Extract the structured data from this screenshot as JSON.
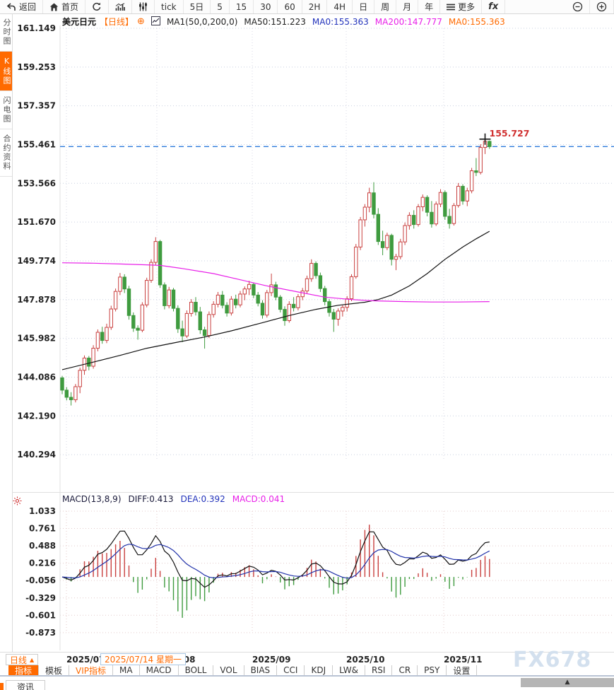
{
  "colors": {
    "accent_orange": "#ff6a00",
    "up_red": "#c9403f",
    "down_green": "#3f9b3f",
    "ma50_black": "#111111",
    "ma200_magenta": "#e820e8",
    "dea_blue": "#2233aa",
    "price_line_blue": "#2d7bdb",
    "annotation_red": "#d03030"
  },
  "top_toolbar": {
    "items": [
      {
        "icon": "back-arrow-icon",
        "label": "返回"
      },
      {
        "icon": "home-icon",
        "label": "首页"
      },
      {
        "icon": "refresh-icon"
      },
      {
        "icon": "bar-chart-icon"
      },
      {
        "icon": "candles-icon"
      },
      {
        "label": "tick"
      },
      {
        "label": "5日"
      },
      {
        "label": "5"
      },
      {
        "label": "15"
      },
      {
        "label": "30"
      },
      {
        "label": "60"
      },
      {
        "label": "2H"
      },
      {
        "label": "4H"
      },
      {
        "label": "日"
      },
      {
        "label": "周"
      },
      {
        "label": "月"
      },
      {
        "label": "年"
      },
      {
        "icon": "menu-icon",
        "label": "更多"
      },
      {
        "icon": "fx-icon",
        "label": "fx"
      },
      {
        "icon": "zoom-out-icon"
      },
      {
        "icon": "zoom-in-icon"
      }
    ]
  },
  "sidebar": {
    "tabs": [
      {
        "label": "分时图",
        "active": false
      },
      {
        "label": "K线图",
        "active": true
      },
      {
        "label": "闪电图",
        "active": false
      },
      {
        "label": "合约资料",
        "active": false
      }
    ]
  },
  "chart_header": {
    "symbol": "美元日元",
    "period": "【日线】",
    "expand_icon": "⊕",
    "ma_settings": "MA1(50,0,200,0)",
    "ma50": "MA50:151.223",
    "ma0_blue": "MA0:155.363",
    "ma200": "MA200:147.777",
    "ma0_orange": "MA0:155.363"
  },
  "macd_header": {
    "title": "MACD(13,8,9)",
    "diff": "DIFF:0.413",
    "dea": "DEA:0.392",
    "macd": "MACD:0.041"
  },
  "x_axis": {
    "period_button": "日线",
    "period_arrow": "▲",
    "date_tag": "2025/07/14 星期一"
  },
  "bottom_toolbar": {
    "tabs": [
      {
        "label": "指标",
        "active": true
      },
      {
        "label": "模板"
      },
      {
        "label": "VIP指标",
        "vip": true
      },
      {
        "label": "MA"
      },
      {
        "label": "MACD"
      },
      {
        "label": "BOLL"
      },
      {
        "label": "VOL"
      },
      {
        "label": "BIAS"
      },
      {
        "label": "CCI"
      },
      {
        "label": "KDJ"
      },
      {
        "label": "LW&"
      },
      {
        "label": "RSI"
      },
      {
        "label": "CR"
      },
      {
        "label": "PSY"
      },
      {
        "label": "设置"
      }
    ]
  },
  "bottom_strip": {
    "news_tab": "资讯",
    "collapse_arrow": "▲"
  },
  "watermark": "FX678",
  "chart_data": [
    {
      "type": "candlestick",
      "symbol": "美元日元",
      "period": "日线",
      "y_ticks": [
        "161.149",
        "159.253",
        "157.357",
        "155.461",
        "153.566",
        "151.670",
        "149.774",
        "147.878",
        "145.982",
        "144.086",
        "142.190",
        "140.294"
      ],
      "x_labels": [
        {
          "text": "2025/07",
          "x": 94
        },
        {
          "text": "2025/08",
          "x": 222
        },
        {
          "text": "2025/09",
          "x": 357
        },
        {
          "text": "2025/10",
          "x": 490
        },
        {
          "text": "2025/11",
          "x": 628
        }
      ],
      "price_line_value": 155.363,
      "crosshair": {
        "index": 95,
        "price": 155.727,
        "label": "155.727"
      },
      "ma50": [
        [
          0,
          144.45
        ],
        [
          7,
          144.82
        ],
        [
          13,
          145.15
        ],
        [
          19,
          145.5
        ],
        [
          26,
          145.8
        ],
        [
          32,
          146.05
        ],
        [
          38,
          146.35
        ],
        [
          45,
          146.75
        ],
        [
          51,
          147.1
        ],
        [
          57,
          147.4
        ],
        [
          62,
          147.6
        ],
        [
          68,
          147.75
        ],
        [
          71,
          147.88
        ],
        [
          74,
          148.1
        ],
        [
          78,
          148.55
        ],
        [
          82,
          149.15
        ],
        [
          86,
          149.85
        ],
        [
          90,
          150.45
        ],
        [
          93,
          150.85
        ],
        [
          96,
          151.22
        ]
      ],
      "ma200": [
        [
          0,
          149.68
        ],
        [
          7,
          149.66
        ],
        [
          13,
          149.62
        ],
        [
          19,
          149.58
        ],
        [
          22,
          149.55
        ],
        [
          27,
          149.4
        ],
        [
          34,
          149.15
        ],
        [
          40,
          148.85
        ],
        [
          46,
          148.55
        ],
        [
          53,
          148.25
        ],
        [
          59,
          148.0
        ],
        [
          65,
          147.88
        ],
        [
          70,
          147.82
        ],
        [
          77,
          147.78
        ],
        [
          83,
          147.76
        ],
        [
          89,
          147.76
        ],
        [
          96,
          147.78
        ]
      ],
      "candles": [
        [
          144.05,
          144.15,
          143.25,
          143.45
        ],
        [
          143.45,
          143.6,
          142.95,
          143.1
        ],
        [
          143.1,
          143.35,
          142.7,
          142.98
        ],
        [
          142.98,
          143.75,
          142.85,
          143.62
        ],
        [
          143.62,
          144.55,
          143.3,
          144.42
        ],
        [
          144.42,
          145.15,
          144.2,
          145.02
        ],
        [
          145.02,
          145.12,
          144.42,
          144.62
        ],
        [
          144.62,
          145.65,
          144.5,
          145.5
        ],
        [
          145.5,
          146.42,
          145.35,
          146.28
        ],
        [
          146.28,
          146.55,
          145.72,
          145.88
        ],
        [
          145.88,
          146.7,
          145.75,
          146.52
        ],
        [
          146.52,
          147.58,
          146.4,
          147.42
        ],
        [
          147.42,
          148.42,
          147.3,
          148.28
        ],
        [
          148.28,
          149.18,
          148.1,
          148.98
        ],
        [
          148.98,
          149.12,
          148.2,
          148.4
        ],
        [
          148.4,
          148.55,
          146.9,
          147.1
        ],
        [
          147.1,
          147.25,
          146.3,
          146.48
        ],
        [
          146.48,
          146.62,
          145.92,
          146.38
        ],
        [
          146.38,
          147.75,
          146.28,
          147.62
        ],
        [
          147.62,
          148.95,
          147.5,
          148.82
        ],
        [
          148.82,
          149.85,
          148.7,
          149.7
        ],
        [
          149.7,
          150.93,
          149.55,
          150.72
        ],
        [
          150.72,
          150.8,
          148.45,
          148.6
        ],
        [
          148.6,
          148.72,
          147.4,
          147.58
        ],
        [
          147.58,
          148.5,
          147.45,
          148.35
        ],
        [
          148.35,
          148.45,
          147.3,
          147.45
        ],
        [
          147.45,
          147.6,
          146.25,
          146.45
        ],
        [
          146.45,
          146.85,
          145.8,
          146.1
        ],
        [
          146.1,
          147.35,
          146.0,
          147.2
        ],
        [
          147.2,
          147.9,
          147.05,
          147.75
        ],
        [
          147.75,
          148.0,
          147.1,
          147.28
        ],
        [
          147.28,
          147.52,
          146.2,
          146.4
        ],
        [
          146.4,
          146.55,
          145.48,
          146.12
        ],
        [
          146.12,
          147.3,
          146.0,
          147.15
        ],
        [
          147.15,
          147.8,
          147.0,
          147.65
        ],
        [
          147.65,
          148.25,
          147.5,
          148.1
        ],
        [
          148.1,
          148.3,
          147.45,
          147.6
        ],
        [
          147.6,
          147.75,
          147.05,
          147.22
        ],
        [
          147.22,
          148.05,
          147.1,
          147.9
        ],
        [
          147.9,
          148.12,
          147.45,
          147.62
        ],
        [
          147.62,
          148.3,
          147.5,
          148.15
        ],
        [
          148.15,
          148.52,
          147.85,
          148.4
        ],
        [
          148.4,
          148.8,
          148.1,
          148.62
        ],
        [
          148.62,
          148.72,
          147.95,
          148.1
        ],
        [
          148.1,
          148.25,
          147.55,
          147.7
        ],
        [
          147.7,
          147.85,
          146.95,
          147.12
        ],
        [
          147.12,
          148.35,
          147.0,
          148.22
        ],
        [
          148.22,
          149.15,
          148.05,
          148.6
        ],
        [
          148.6,
          148.75,
          147.85,
          148.0
        ],
        [
          148.0,
          148.1,
          147.25,
          147.4
        ],
        [
          147.4,
          147.55,
          146.6,
          146.85
        ],
        [
          146.85,
          147.8,
          146.75,
          147.65
        ],
        [
          147.65,
          148.0,
          147.3,
          147.48
        ],
        [
          147.48,
          148.15,
          147.35,
          148.02
        ],
        [
          148.02,
          148.45,
          147.85,
          148.3
        ],
        [
          148.3,
          149.05,
          148.15,
          148.9
        ],
        [
          148.9,
          149.85,
          148.75,
          149.65
        ],
        [
          149.65,
          149.75,
          148.9,
          149.05
        ],
        [
          149.05,
          149.2,
          148.25,
          148.42
        ],
        [
          148.42,
          148.55,
          147.6,
          147.78
        ],
        [
          147.78,
          147.9,
          147.05,
          147.25
        ],
        [
          147.25,
          147.42,
          146.3,
          146.92
        ],
        [
          146.92,
          147.45,
          146.6,
          147.32
        ],
        [
          147.32,
          147.6,
          147.05,
          147.5
        ],
        [
          147.5,
          148.05,
          147.3,
          147.92
        ],
        [
          147.92,
          149.12,
          147.8,
          149.0
        ],
        [
          149.0,
          150.6,
          148.9,
          150.45
        ],
        [
          150.45,
          151.92,
          150.3,
          151.78
        ],
        [
          151.78,
          152.55,
          151.45,
          152.4
        ],
        [
          152.4,
          153.35,
          152.15,
          153.1
        ],
        [
          153.1,
          153.62,
          151.85,
          152.05
        ],
        [
          152.05,
          152.35,
          150.55,
          150.72
        ],
        [
          150.72,
          151.25,
          150.05,
          150.42
        ],
        [
          150.42,
          151.15,
          150.3,
          151.02
        ],
        [
          151.02,
          151.1,
          149.55,
          149.85
        ],
        [
          149.85,
          150.12,
          149.32,
          149.98
        ],
        [
          149.98,
          150.85,
          149.85,
          150.7
        ],
        [
          150.7,
          151.65,
          150.55,
          151.5
        ],
        [
          151.5,
          152.15,
          151.3,
          152.0
        ],
        [
          152.0,
          152.25,
          151.35,
          151.55
        ],
        [
          151.55,
          152.55,
          151.45,
          152.42
        ],
        [
          152.42,
          153.02,
          152.2,
          152.88
        ],
        [
          152.88,
          152.98,
          151.95,
          152.15
        ],
        [
          152.15,
          152.7,
          151.4,
          151.58
        ],
        [
          151.58,
          152.68,
          151.48,
          152.55
        ],
        [
          152.55,
          153.28,
          152.4,
          153.12
        ],
        [
          153.12,
          153.22,
          151.78,
          151.95
        ],
        [
          151.95,
          152.32,
          151.35,
          151.6
        ],
        [
          151.6,
          152.6,
          151.5,
          152.48
        ],
        [
          152.48,
          153.58,
          152.38,
          153.42
        ],
        [
          153.42,
          153.52,
          152.52,
          152.7
        ],
        [
          152.7,
          153.35,
          152.45,
          153.2
        ],
        [
          153.2,
          154.32,
          153.08,
          154.18
        ],
        [
          154.18,
          154.8,
          153.92,
          154.1
        ],
        [
          154.1,
          155.48,
          154.0,
          155.32
        ],
        [
          155.32,
          155.73,
          155.0,
          155.62
        ],
        [
          155.62,
          155.66,
          155.25,
          155.36
        ]
      ]
    },
    {
      "type": "macd",
      "params": [
        13,
        8,
        9
      ],
      "y_ticks": [
        "1.033",
        "0.761",
        "0.488",
        "0.216",
        "-0.056",
        "-0.329",
        "-0.601",
        "-0.873"
      ],
      "diff": 0.413,
      "dea": 0.392,
      "macd": 0.041
    }
  ]
}
